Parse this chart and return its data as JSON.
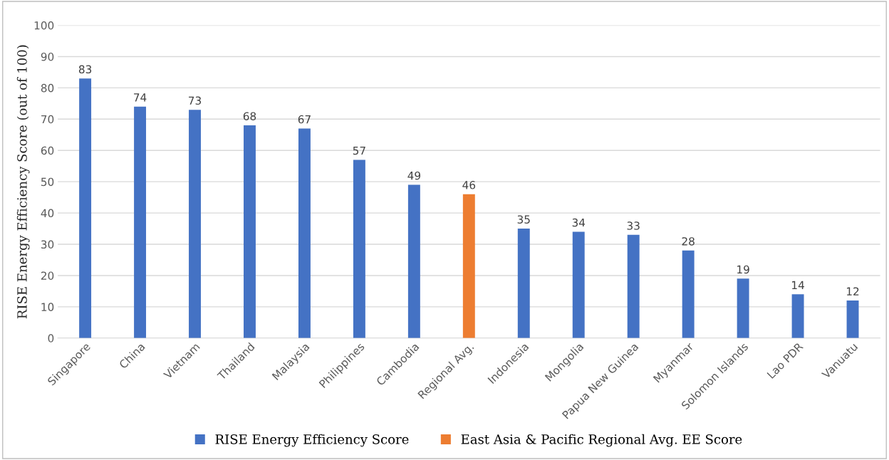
{
  "chart_data": {
    "type": "bar",
    "ylabel": "RISE Energy Efficiency Score (out of 100)",
    "categories": [
      "Singapore",
      "China",
      "Vietnam",
      "Thailand",
      "Malaysia",
      "Philippines",
      "Cambodia",
      "Regional Avg.",
      "Indonesia",
      "Mongolia",
      "Papua New Guinea",
      "Myanmar",
      "Solomon Islands",
      "Lao PDR",
      "Vanuatu"
    ],
    "series": [
      {
        "name": "RISE Energy Efficiency Score",
        "color": "#4472c4",
        "values": [
          83,
          74,
          73,
          68,
          67,
          57,
          49,
          null,
          35,
          34,
          33,
          28,
          19,
          14,
          12
        ]
      },
      {
        "name": "East Asia & Pacific Regional Avg. EE Score",
        "color": "#ed7d31",
        "values": [
          null,
          null,
          null,
          null,
          null,
          null,
          null,
          46,
          null,
          null,
          null,
          null,
          null,
          null,
          null
        ]
      }
    ],
    "ylim": [
      0,
      100
    ],
    "yticks": [
      0,
      10,
      20,
      30,
      40,
      50,
      60,
      70,
      80,
      90,
      100
    ],
    "grid": "y",
    "legend": "bottom",
    "data_labels": true
  }
}
